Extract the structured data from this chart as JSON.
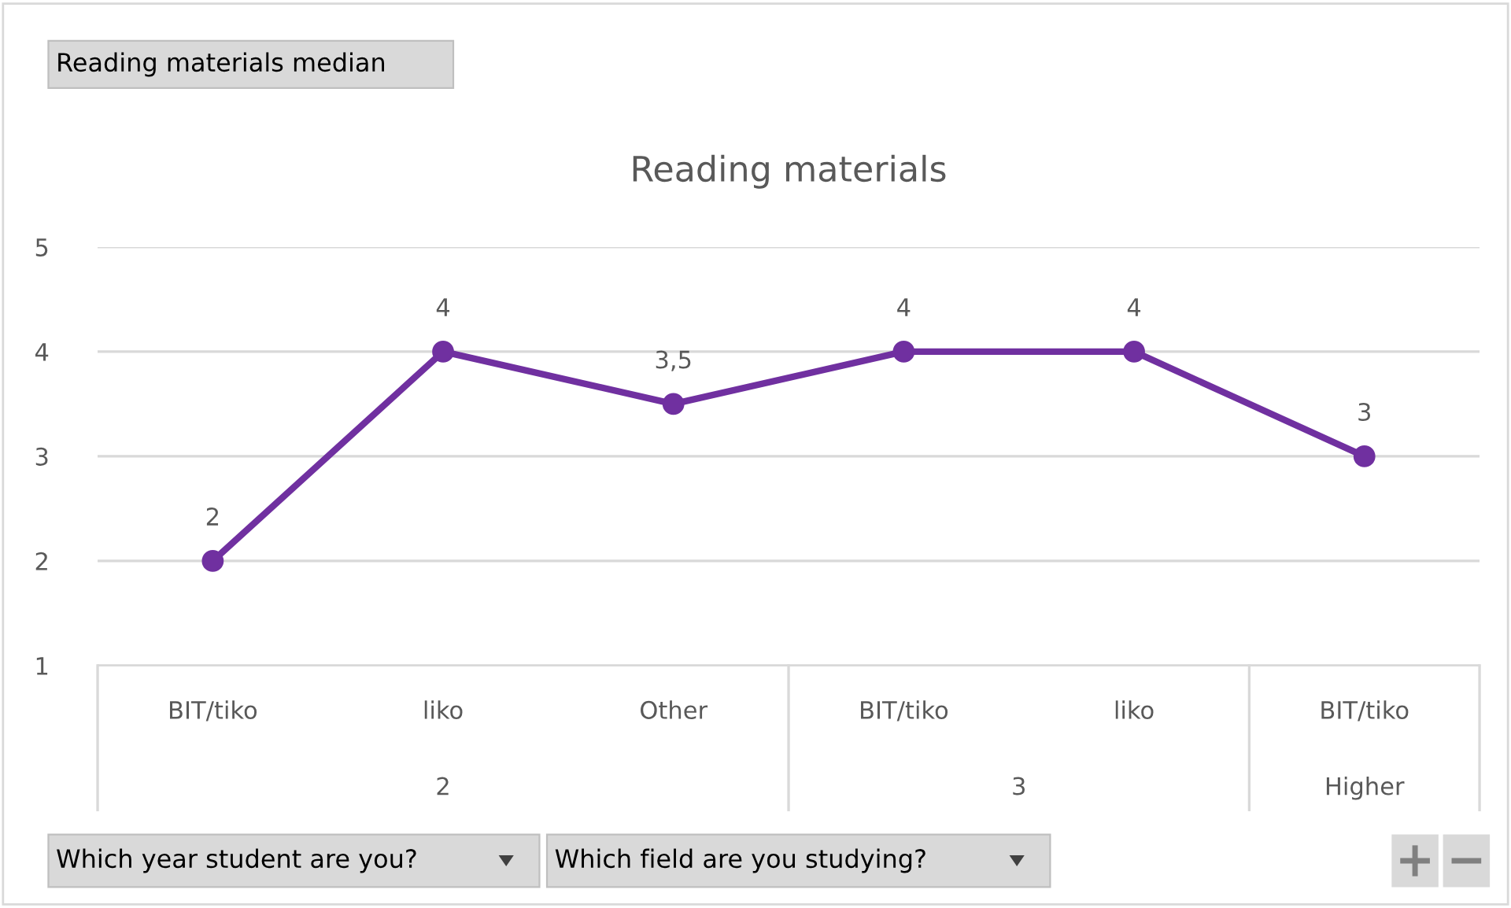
{
  "chart_data": {
    "type": "line",
    "title": "Reading materials",
    "categories": [
      "BIT/tiko",
      "liko",
      "Other",
      "BIT/tiko",
      "liko",
      "BIT/tiko"
    ],
    "series": [
      {
        "color": "#7030a0",
        "values": [
          2,
          4,
          3.5,
          4,
          4,
          3
        ],
        "value_labels": [
          "2",
          "4",
          "3,5",
          "4",
          "4",
          "3"
        ]
      }
    ],
    "ylim": [
      1,
      5
    ],
    "yticks": [
      1,
      2,
      3,
      4,
      5
    ],
    "grid": "y",
    "marker": "circle",
    "line_style": "solid",
    "annotations": [
      "Reading materials median",
      "Which year student are you?",
      "Which field are you studying?",
      "2",
      "3",
      "Higher"
    ]
  }
}
